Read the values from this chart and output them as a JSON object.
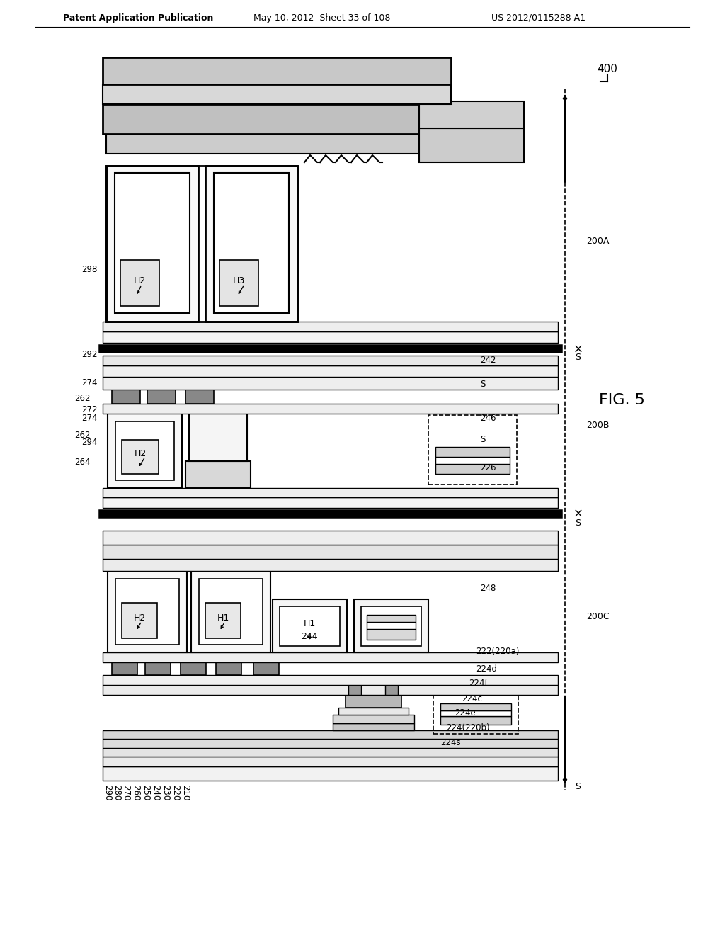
{
  "header_left": "Patent Application Publication",
  "header_mid": "May 10, 2012  Sheet 33 of 108",
  "header_right": "US 2012/0115288 A1",
  "fig_label": "FIG. 5",
  "fig_number": "400",
  "bg": "#ffffff",
  "lc": "#000000"
}
